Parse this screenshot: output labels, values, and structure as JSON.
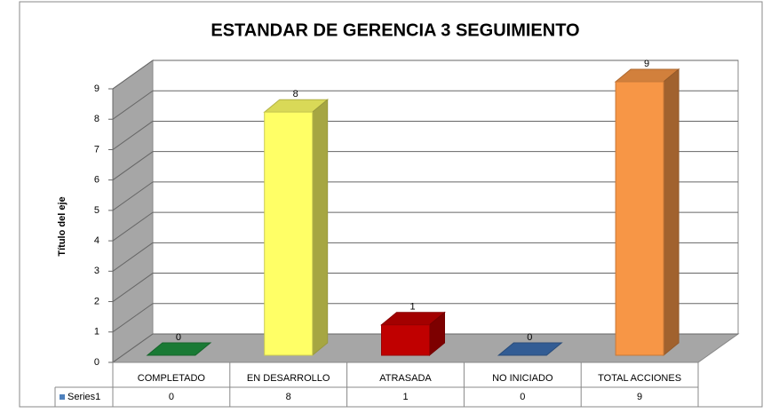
{
  "chart_data": {
    "type": "bar3d",
    "title": "ESTANDAR DE GERENCIA 3 SEGUIMIENTO",
    "y_axis_label": "Título del eje",
    "categories": [
      "COMPLETADO",
      "EN DESARROLLO",
      "ATRASADA",
      "NO INICIADO",
      "TOTAL ACCIONES"
    ],
    "series": [
      {
        "name": "Series1",
        "color": "#4f81bd",
        "values": [
          0,
          8,
          1,
          0,
          9
        ]
      }
    ],
    "bar_colors": [
      "#1e8f3e",
      "#ffff66",
      "#c00000",
      "#3b6cae",
      "#f79646"
    ],
    "ylim": [
      0,
      9
    ],
    "yticks": [
      0,
      1,
      2,
      3,
      4,
      5,
      6,
      7,
      8,
      9
    ],
    "grid": true,
    "data_table": true
  }
}
